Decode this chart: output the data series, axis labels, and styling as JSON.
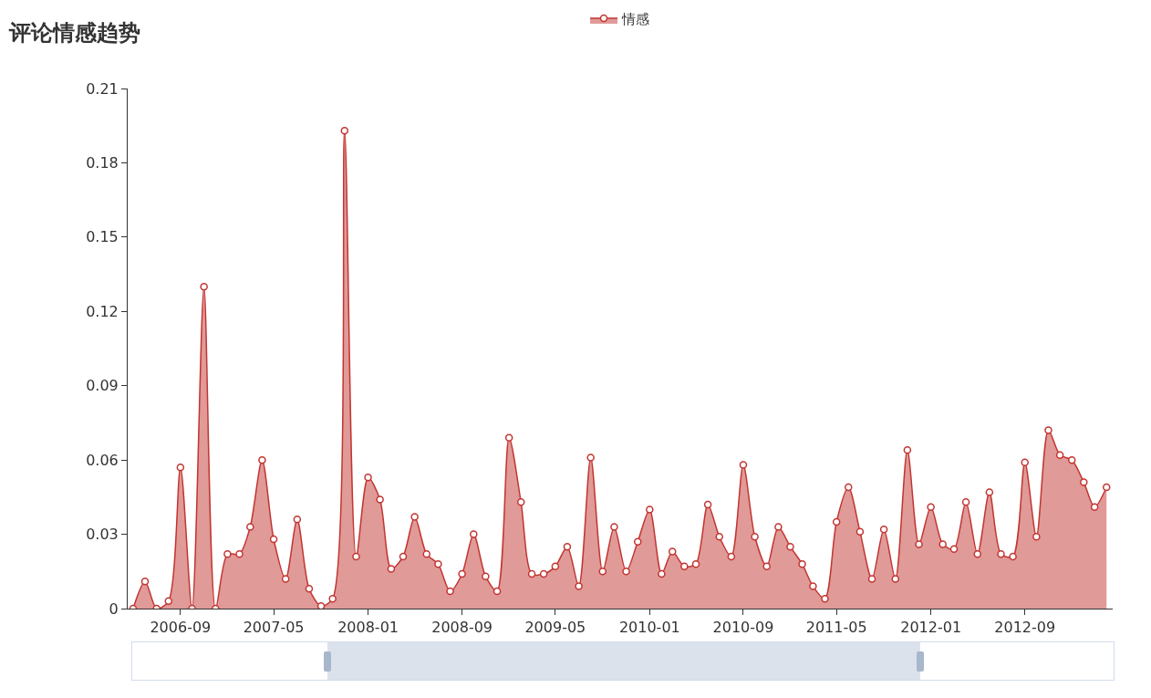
{
  "chart_data": {
    "type": "area",
    "title": "评论情感趋势",
    "legend": "top",
    "marker": "circle",
    "line_style": "solid",
    "grid": false,
    "x": [
      "2006-05",
      "2006-06",
      "2006-07",
      "2006-08",
      "2006-09",
      "2006-10",
      "2006-11",
      "2006-12",
      "2007-01",
      "2007-02",
      "2007-03",
      "2007-04",
      "2007-05",
      "2007-06",
      "2007-07",
      "2007-08",
      "2007-09",
      "2007-10",
      "2007-11",
      "2007-12",
      "2008-01",
      "2008-02",
      "2008-03",
      "2008-04",
      "2008-05",
      "2008-06",
      "2008-07",
      "2008-08",
      "2008-09",
      "2008-10",
      "2008-11",
      "2008-12",
      "2009-01",
      "2009-02",
      "2009-03",
      "2009-04",
      "2009-05",
      "2009-06",
      "2009-07",
      "2009-08",
      "2009-09",
      "2009-10",
      "2009-11",
      "2009-12",
      "2010-01",
      "2010-02",
      "2010-03",
      "2010-04",
      "2010-05",
      "2010-06",
      "2010-07",
      "2010-08",
      "2010-09",
      "2010-10",
      "2010-11",
      "2010-12",
      "2011-01",
      "2011-02",
      "2011-03",
      "2011-04",
      "2011-05",
      "2011-06",
      "2011-07",
      "2011-08",
      "2011-09",
      "2011-10",
      "2011-11",
      "2011-12",
      "2012-01",
      "2012-02",
      "2012-03",
      "2012-04",
      "2012-05",
      "2012-06",
      "2012-07",
      "2012-08",
      "2012-09",
      "2012-10",
      "2012-11",
      "2012-12",
      "2013-01",
      "2013-02",
      "2013-03",
      "2013-04"
    ],
    "series": [
      {
        "name": "情感",
        "color": "#c23531",
        "values": [
          0,
          0.011,
          0,
          0.003,
          0.057,
          0,
          0.13,
          0,
          0.022,
          0.022,
          0.033,
          0.06,
          0.028,
          0.012,
          0.036,
          0.008,
          0.001,
          0.004,
          0.193,
          0.021,
          0.053,
          0.044,
          0.016,
          0.021,
          0.037,
          0.022,
          0.018,
          0.007,
          0.014,
          0.03,
          0.013,
          0.007,
          0.069,
          0.043,
          0.014,
          0.014,
          0.017,
          0.025,
          0.009,
          0.061,
          0.015,
          0.033,
          0.015,
          0.027,
          0.04,
          0.014,
          0.023,
          0.017,
          0.018,
          0.042,
          0.029,
          0.021,
          0.058,
          0.029,
          0.017,
          0.033,
          0.025,
          0.018,
          0.009,
          0.004,
          0.035,
          0.049,
          0.031,
          0.012,
          0.032,
          0.012,
          0.064,
          0.026,
          0.041,
          0.026,
          0.024,
          0.043,
          0.022,
          0.047,
          0.022,
          0.021,
          0.059,
          0.029,
          0.072,
          0.062,
          0.06,
          0.051,
          0.041,
          0.049
        ]
      }
    ],
    "xlim": [
      "2006-04-17",
      "2013-04-17"
    ],
    "xticks": [
      "2006-09",
      "2007-05",
      "2008-01",
      "2008-09",
      "2009-05",
      "2010-01",
      "2010-09",
      "2011-05",
      "2012-01",
      "2012-09"
    ],
    "ylim": [
      0,
      0.21
    ],
    "yticks": [
      0,
      0.03,
      0.06,
      0.09,
      0.12,
      0.15,
      0.18,
      0.21
    ]
  }
}
